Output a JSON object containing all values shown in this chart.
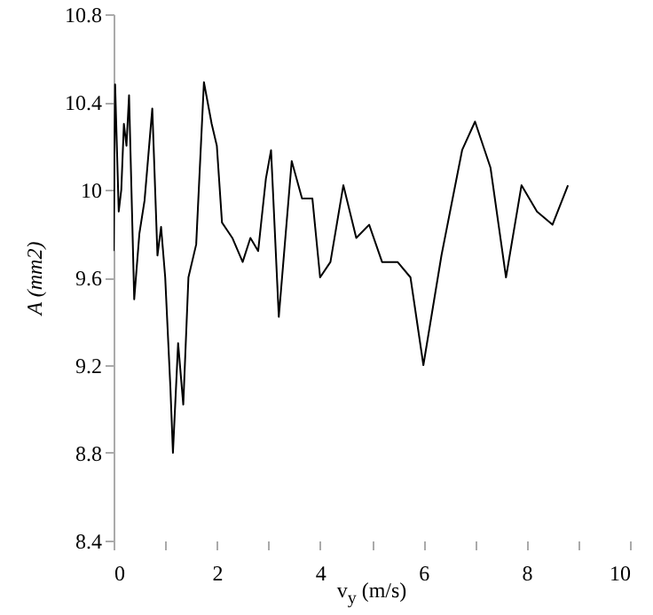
{
  "chart_data": {
    "type": "line",
    "xlabel": "v$_{y}$ (m/s)",
    "ylabel": "A (mm2)",
    "xlim": [
      0,
      10
    ],
    "xticks": [
      0,
      {
        "value": 1,
        "label": null
      },
      2,
      {
        "value": 3,
        "label": null
      },
      4,
      {
        "value": 5,
        "label": null
      },
      6,
      {
        "value": 7,
        "label": null
      },
      8,
      {
        "value": 9,
        "label": null
      },
      10
    ],
    "ylim": [
      8.4,
      10.8
    ],
    "yticks": [
      8.4,
      8.8,
      9.2,
      9.6,
      {
        "value": 10,
        "label": "10"
      },
      10.4,
      10.8
    ],
    "grid": false,
    "marker": "none",
    "line_style": "solid",
    "series": [
      {
        "color": "#000000",
        "x": [
          0,
          0.03,
          0.1,
          0.15,
          0.2,
          0.25,
          0.3,
          0.4,
          0.5,
          0.6,
          0.75,
          0.85,
          0.92,
          1.0,
          1.1,
          1.15,
          1.25,
          1.35,
          1.45,
          1.6,
          1.75,
          1.9,
          2.0,
          2.1,
          2.3,
          2.5,
          2.65,
          2.8,
          2.95,
          3.05,
          3.2,
          3.45,
          3.65,
          3.85,
          4.0,
          4.2,
          4.45,
          4.7,
          4.95,
          5.2,
          5.5,
          5.75,
          6.0,
          6.35,
          6.75,
          7.0,
          7.3,
          7.6,
          7.9,
          8.2,
          8.5,
          8.8
        ],
        "values": [
          9.72,
          10.48,
          9.9,
          10.0,
          10.3,
          10.2,
          10.43,
          9.5,
          9.8,
          9.95,
          10.37,
          9.7,
          9.83,
          9.6,
          9.1,
          8.8,
          9.3,
          9.02,
          9.6,
          9.75,
          10.49,
          10.3,
          10.2,
          9.85,
          9.78,
          9.67,
          9.78,
          9.72,
          10.05,
          10.18,
          9.42,
          10.13,
          9.96,
          9.96,
          9.6,
          9.67,
          10.02,
          9.78,
          9.84,
          9.67,
          9.67,
          9.6,
          9.2,
          9.7,
          10.18,
          10.31,
          10.1,
          9.6,
          10.02,
          9.9,
          9.84,
          10.02
        ]
      }
    ]
  }
}
